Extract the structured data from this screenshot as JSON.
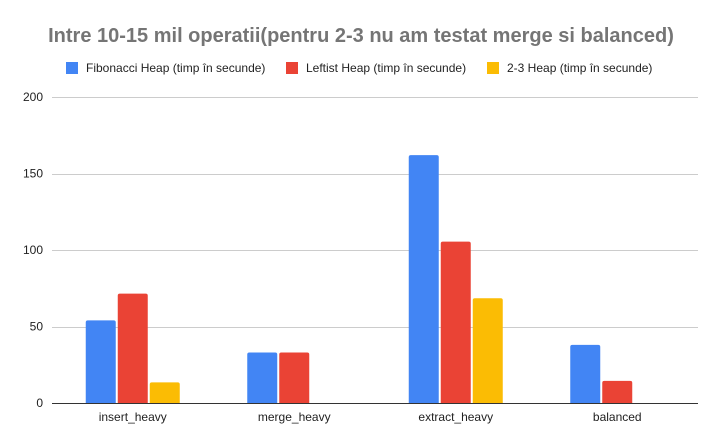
{
  "chart_data": {
    "type": "bar",
    "title": "Intre 10-15 mil operatii(pentru 2-3 nu am testat merge si balanced)",
    "xlabel": "",
    "ylabel": "",
    "categories": [
      "insert_heavy",
      "merge_heavy",
      "extract_heavy",
      "balanced"
    ],
    "series": [
      {
        "name": "Fibonacci Heap (timp în secunde)",
        "color": "#4285f4",
        "values": [
          54,
          33,
          162,
          38
        ]
      },
      {
        "name": "Leftist Heap (timp în secunde)",
        "color": "#ea4335",
        "values": [
          71.5,
          33,
          105.5,
          14.5
        ]
      },
      {
        "name": "2-3 Heap (timp în secunde)",
        "color": "#fbbc04",
        "values": [
          13.5,
          null,
          68.5,
          null
        ]
      }
    ],
    "ylim": [
      0,
      200
    ],
    "yticks": [
      "0",
      "50",
      "100",
      "150",
      "200"
    ],
    "grid": true,
    "legend_position": "top"
  }
}
